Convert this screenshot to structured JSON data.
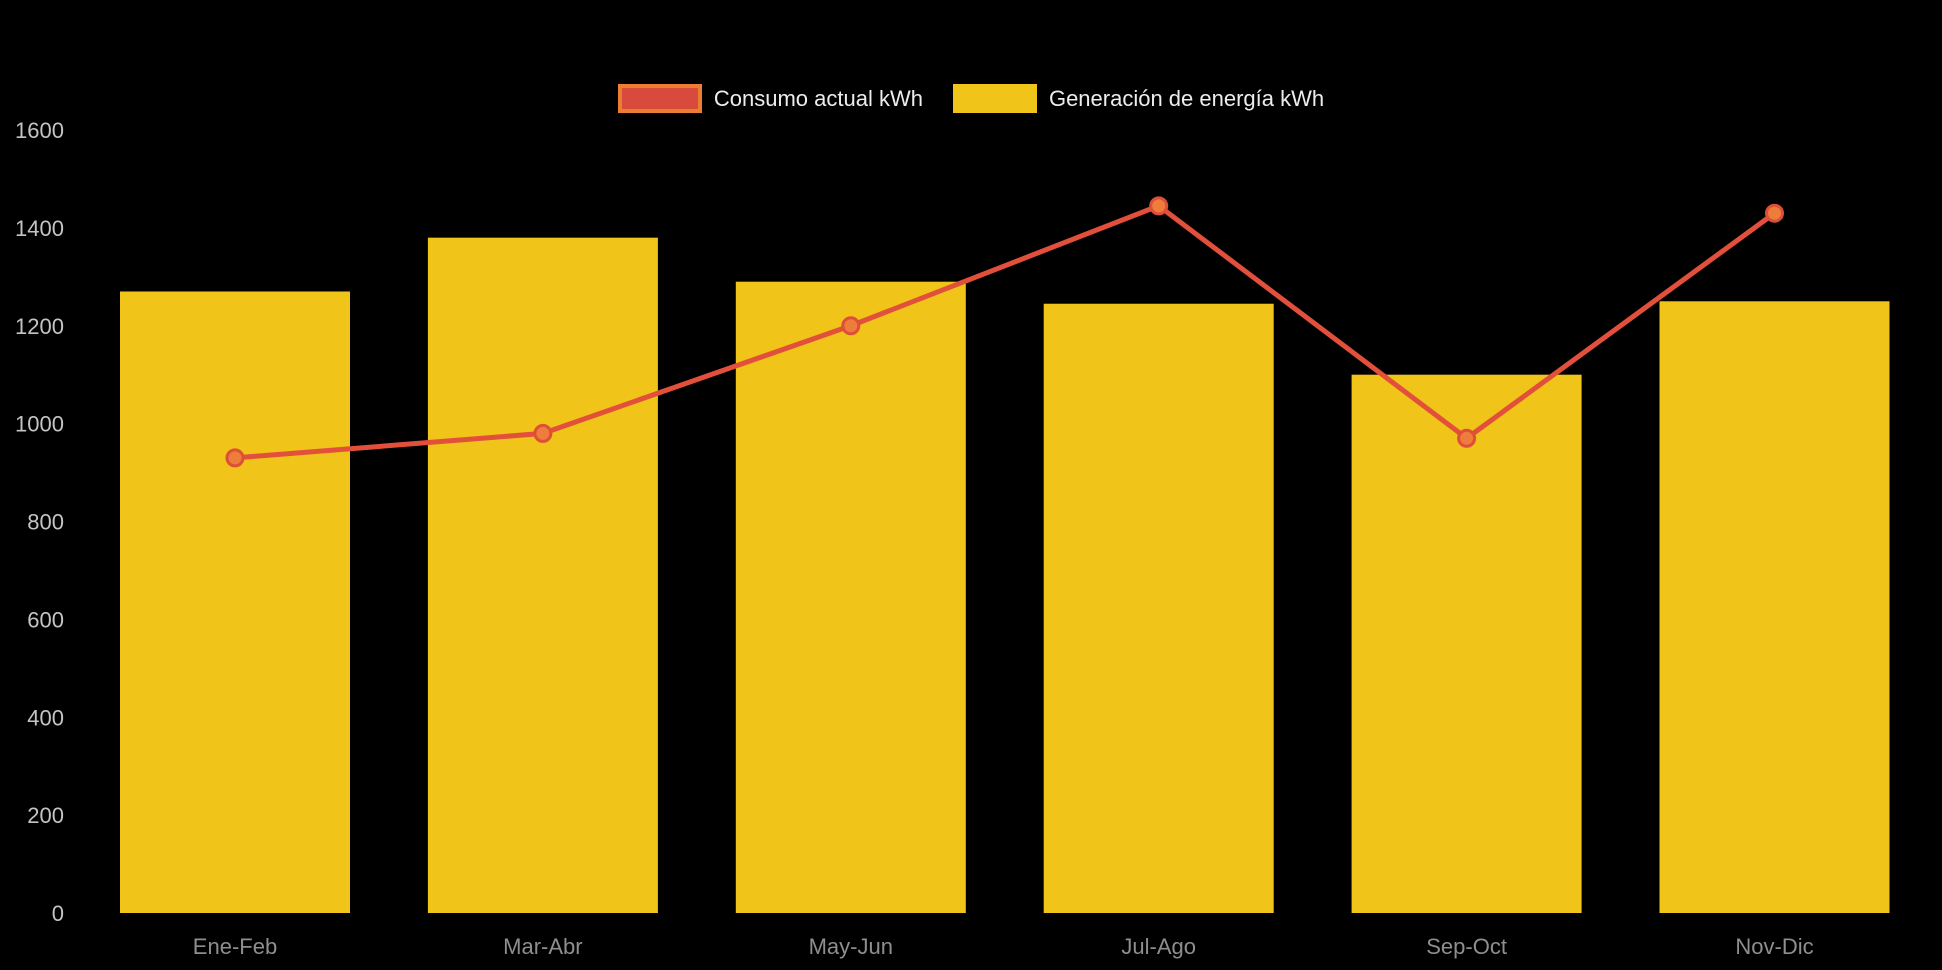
{
  "chart_data": {
    "type": "bar",
    "title": "",
    "categories": [
      "Ene-Feb",
      "Mar-Abr",
      "May-Jun",
      "Jul-Ago",
      "Sep-Oct",
      "Nov-Dic"
    ],
    "series": [
      {
        "name": "Consumo actual kWh",
        "type": "line",
        "values": [
          930,
          980,
          1200,
          1445,
          970,
          1430
        ],
        "line_color": "#E2503C",
        "marker_fill": "#EE7C3B",
        "marker_stroke": "#DD4F38"
      },
      {
        "name": "Generación de energía kWh",
        "type": "bar",
        "values": [
          1270,
          1380,
          1290,
          1245,
          1100,
          1250
        ],
        "color": "#F0C419"
      }
    ],
    "xlabel": "",
    "ylabel": "",
    "ylim": [
      0,
      1600
    ],
    "yticks": [
      0,
      200,
      400,
      600,
      800,
      1000,
      1200,
      1400,
      1600
    ],
    "grid": false,
    "legend_position": "top",
    "background_color": "#000000",
    "ytick_color": "#C4C4C4",
    "xtick_color": "#8E8E8E"
  },
  "legend": {
    "items": [
      {
        "label": "Consumo actual kWh",
        "swatch_fill": "#D84A3B",
        "swatch_border": "#ED7D31"
      },
      {
        "label": "Generación de energía kWh",
        "swatch_fill": "#F0C419",
        "swatch_border": "#F0C419"
      }
    ]
  }
}
